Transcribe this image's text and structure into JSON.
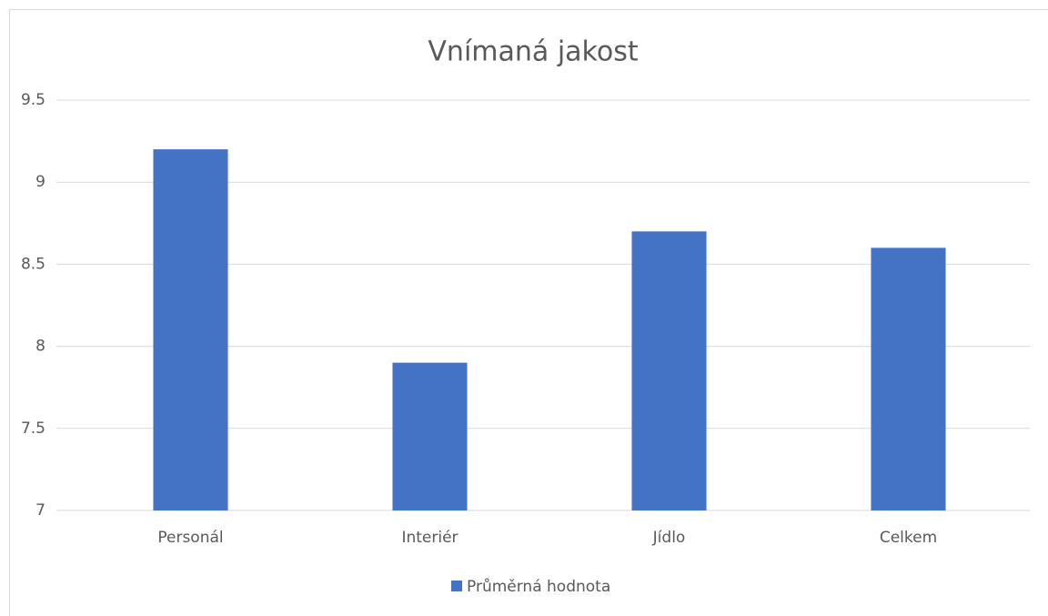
{
  "chart_data": {
    "type": "bar",
    "title": "Vnímaná jakost",
    "categories": [
      "Personál",
      "Interiér",
      "Jídlo",
      "Celkem"
    ],
    "series": [
      {
        "name": "Průměrná hodnota",
        "color": "#4472c4",
        "values": [
          9.2,
          7.9,
          8.7,
          8.6
        ]
      }
    ],
    "ylim": [
      7,
      9.5
    ],
    "yticks": [
      7,
      7.5,
      8,
      8.5,
      9,
      9.5
    ],
    "grid": true,
    "legend": "bottom"
  }
}
